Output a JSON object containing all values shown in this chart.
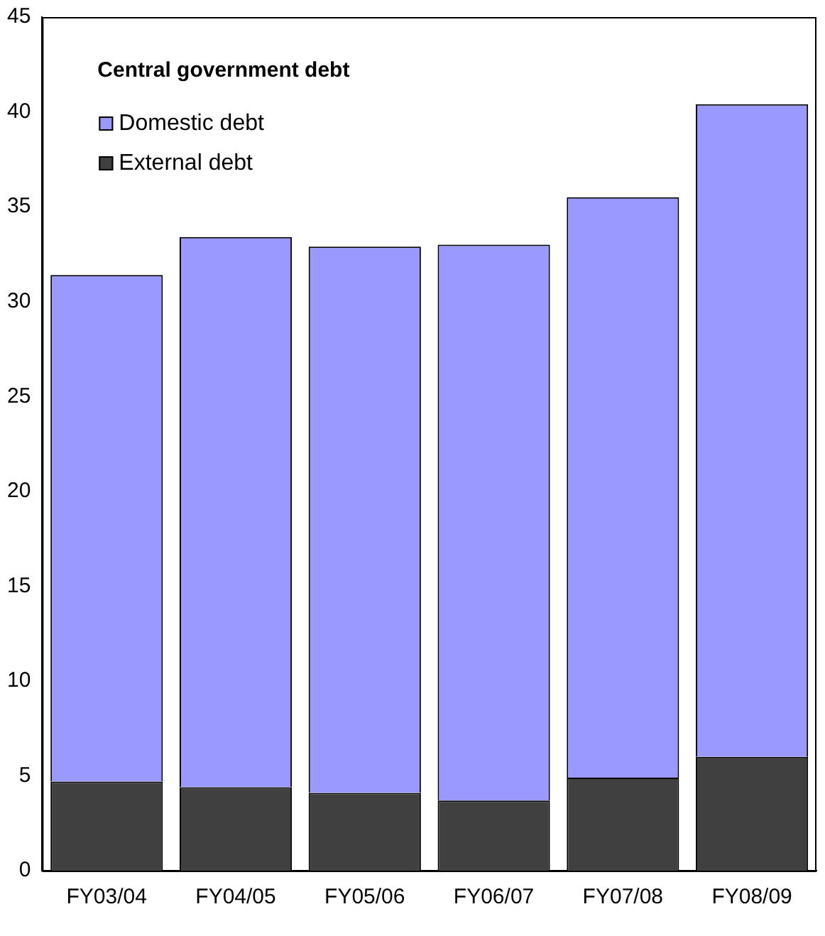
{
  "chart_data": {
    "type": "bar",
    "title": "Central government debt",
    "categories": [
      "FY03/04",
      "FY04/05",
      "FY05/06",
      "FY06/07",
      "FY07/08",
      "FY08/09"
    ],
    "series": [
      {
        "name": "External debt",
        "color": "#404040",
        "values": [
          4.7,
          4.4,
          4.1,
          3.7,
          4.9,
          6.0
        ]
      },
      {
        "name": "Domestic debt",
        "color": "#9999ff",
        "values": [
          26.7,
          29.0,
          28.8,
          29.3,
          30.6,
          34.4
        ]
      }
    ],
    "stacked": true,
    "ylim": [
      0,
      45
    ],
    "yticks": [
      0,
      5,
      10,
      15,
      20,
      25,
      30,
      35,
      40,
      45
    ],
    "grid": false,
    "legend": "top left"
  }
}
